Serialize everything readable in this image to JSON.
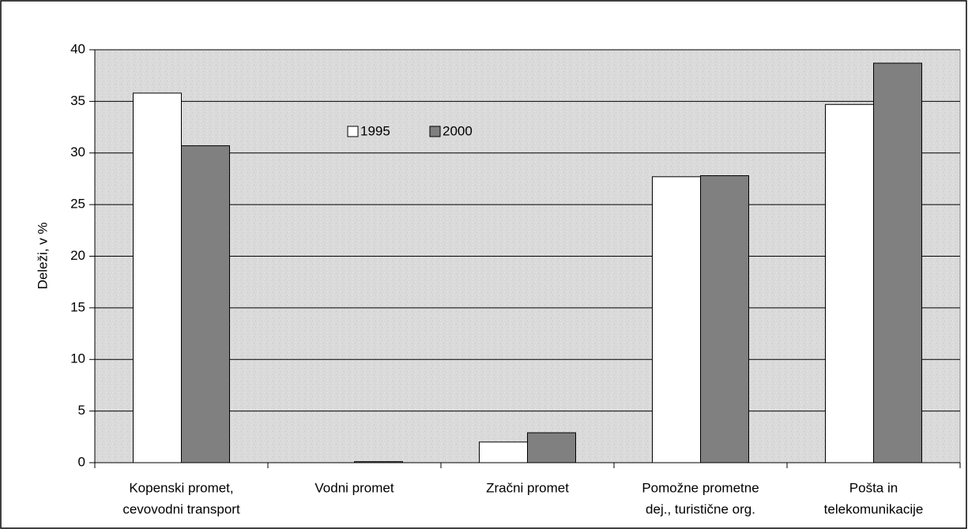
{
  "chart_data": {
    "type": "bar",
    "y_label": "Deleži, v %",
    "categories": [
      [
        "Kopenski promet,",
        "cevovodni transport"
      ],
      [
        "Vodni promet"
      ],
      [
        "Zračni promet"
      ],
      [
        "Pomožne prometne",
        "dej., turistične org."
      ],
      [
        "Pošta in",
        "telekomunikacije"
      ]
    ],
    "series": [
      {
        "name": "1995",
        "color": "#ffffff",
        "values": [
          35.8,
          0,
          2.0,
          27.7,
          34.7
        ]
      },
      {
        "name": "2000",
        "color": "#808080",
        "values": [
          30.7,
          0.1,
          2.9,
          27.8,
          38.7
        ]
      }
    ],
    "ylim": [
      0,
      40
    ],
    "yticks": [
      0,
      5,
      10,
      15,
      20,
      25,
      30,
      35,
      40
    ],
    "grid": true
  }
}
